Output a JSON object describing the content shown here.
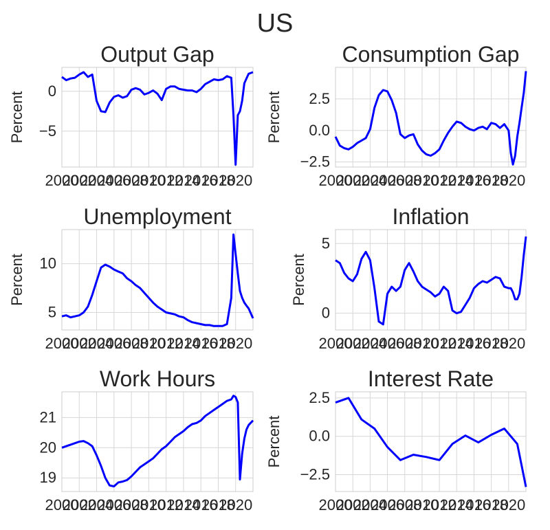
{
  "title": "US",
  "chart_data": [
    {
      "type": "line",
      "title": "Output Gap",
      "ylabel": "Percent",
      "xlim": [
        2000,
        2022
      ],
      "ylim": [
        -9.5,
        3
      ],
      "xticks": [
        2000,
        2002,
        2004,
        2006,
        2008,
        2010,
        2012,
        2014,
        2016,
        2018,
        2020
      ],
      "xtick_labels": [
        "2000",
        "2002",
        "2004",
        "2006",
        "2008",
        "2010",
        "2012",
        "2014",
        "2016",
        "2018",
        "2020"
      ],
      "yticks": [
        -5,
        0
      ],
      "ytick_labels": [
        "−5",
        "0"
      ],
      "series": [
        {
          "color": "#0000ff",
          "x": [
            2000,
            2000.5,
            2001,
            2001.5,
            2002,
            2002.5,
            2003,
            2003.5,
            2004,
            2004.5,
            2005,
            2005.5,
            2006,
            2006.5,
            2007,
            2007.5,
            2008,
            2008.5,
            2009,
            2009.5,
            2010,
            2010.5,
            2011,
            2011.5,
            2012,
            2012.5,
            2013,
            2013.5,
            2014,
            2014.5,
            2015,
            2015.5,
            2016,
            2016.5,
            2017,
            2017.5,
            2018,
            2018.5,
            2019,
            2019.5,
            2019.75,
            2020,
            2020.25,
            2020.5,
            2020.75,
            2021,
            2021.25,
            2021.5,
            2022
          ],
          "y": [
            1.8,
            1.4,
            1.6,
            1.7,
            2.1,
            2.4,
            1.8,
            2.1,
            -1.2,
            -2.5,
            -2.6,
            -1.4,
            -0.7,
            -0.5,
            -0.8,
            -0.6,
            0.2,
            0.4,
            0.2,
            -0.4,
            -0.2,
            0.1,
            -0.3,
            -1.1,
            0.3,
            0.6,
            0.6,
            0.3,
            0.2,
            0.1,
            0.1,
            -0.1,
            0.3,
            0.9,
            1.2,
            1.5,
            1.4,
            1.5,
            1.9,
            1.7,
            -3.0,
            -9.2,
            -3.0,
            -2.5,
            -1.2,
            1.0,
            1.6,
            2.2,
            2.4
          ]
        }
      ]
    },
    {
      "type": "line",
      "title": "Consumption Gap",
      "ylabel": "Percent",
      "xlim": [
        2000,
        2022
      ],
      "ylim": [
        -2.9,
        5
      ],
      "xticks": [
        2000,
        2002,
        2004,
        2006,
        2008,
        2010,
        2012,
        2014,
        2016,
        2018,
        2020
      ],
      "xtick_labels": [
        "2000",
        "2002",
        "2004",
        "2006",
        "2008",
        "2010",
        "2012",
        "2014",
        "2016",
        "2018",
        "2020"
      ],
      "yticks": [
        -2.5,
        0,
        2.5
      ],
      "ytick_labels": [
        "−2.5",
        "0.0",
        "2.5"
      ],
      "series": [
        {
          "color": "#0000ff",
          "x": [
            2000,
            2000.5,
            2001,
            2001.5,
            2002,
            2002.5,
            2003,
            2003.5,
            2004,
            2004.5,
            2005,
            2005.5,
            2006,
            2006.5,
            2007,
            2007.5,
            2008,
            2008.5,
            2009,
            2009.5,
            2010,
            2010.5,
            2011,
            2011.5,
            2012,
            2012.5,
            2013,
            2013.5,
            2014,
            2014.5,
            2015,
            2015.5,
            2016,
            2016.5,
            2017,
            2017.5,
            2018,
            2018.5,
            2019,
            2019.5,
            2020,
            2020.25,
            2020.5,
            2020.75,
            2021,
            2021.25,
            2021.5,
            2021.75,
            2022
          ],
          "y": [
            -0.5,
            -1.2,
            -1.4,
            -1.5,
            -1.3,
            -1.0,
            -0.8,
            -0.6,
            0.1,
            1.8,
            2.8,
            3.2,
            3.1,
            2.4,
            1.4,
            -0.3,
            -0.6,
            -0.4,
            -0.3,
            -1.1,
            -1.6,
            -1.9,
            -2.0,
            -1.8,
            -1.5,
            -0.8,
            -0.2,
            0.3,
            0.7,
            0.6,
            0.3,
            0.1,
            0.0,
            0.2,
            0.3,
            0.1,
            0.6,
            0.5,
            0.2,
            0.5,
            0.0,
            -1.8,
            -2.7,
            -2.0,
            -0.5,
            0.6,
            1.8,
            3.0,
            4.7
          ]
        }
      ]
    },
    {
      "type": "line",
      "title": "Unemployment",
      "ylabel": "Percent",
      "xlim": [
        2000,
        2022
      ],
      "ylim": [
        3.2,
        13.5
      ],
      "xticks": [
        2000,
        2002,
        2004,
        2006,
        2008,
        2010,
        2012,
        2014,
        2016,
        2018,
        2020
      ],
      "xtick_labels": [
        "2000",
        "2002",
        "2004",
        "2006",
        "2008",
        "2010",
        "2012",
        "2014",
        "2016",
        "2018",
        "2020"
      ],
      "yticks": [
        5,
        10
      ],
      "ytick_labels": [
        "5",
        "10"
      ],
      "series": [
        {
          "color": "#0000ff",
          "x": [
            2000,
            2000.5,
            2001,
            2001.5,
            2002,
            2002.5,
            2003,
            2003.5,
            2004,
            2004.5,
            2005,
            2005.5,
            2006,
            2006.5,
            2007,
            2007.5,
            2008,
            2008.5,
            2009,
            2009.5,
            2010,
            2010.5,
            2011,
            2011.5,
            2012,
            2012.5,
            2013,
            2013.5,
            2014,
            2014.5,
            2015,
            2015.5,
            2016,
            2016.5,
            2017,
            2017.5,
            2018,
            2018.5,
            2019,
            2019.5,
            2019.75,
            2020,
            2020.25,
            2020.5,
            2020.75,
            2021,
            2021.25,
            2021.5,
            2022
          ],
          "y": [
            4.6,
            4.7,
            4.5,
            4.6,
            4.7,
            5.0,
            5.6,
            6.8,
            8.2,
            9.6,
            9.9,
            9.7,
            9.4,
            9.2,
            9.0,
            8.5,
            8.2,
            7.8,
            7.5,
            7.0,
            6.5,
            6.0,
            5.6,
            5.3,
            5.0,
            4.9,
            4.8,
            4.6,
            4.5,
            4.2,
            4.0,
            3.9,
            3.8,
            3.7,
            3.7,
            3.6,
            3.6,
            3.6,
            3.8,
            6.5,
            13.0,
            11.0,
            9.0,
            7.2,
            6.5,
            6.0,
            5.7,
            5.4,
            4.4
          ]
        }
      ]
    },
    {
      "type": "line",
      "title": "Inflation",
      "ylabel": "Percent",
      "xlim": [
        2000,
        2022
      ],
      "ylim": [
        -1.2,
        6
      ],
      "xticks": [
        2000,
        2002,
        2004,
        2006,
        2008,
        2010,
        2012,
        2014,
        2016,
        2018,
        2020
      ],
      "xtick_labels": [
        "2000",
        "2002",
        "2004",
        "2006",
        "2008",
        "2010",
        "2012",
        "2014",
        "2016",
        "2018",
        "2020"
      ],
      "yticks": [
        0,
        5
      ],
      "ytick_labels": [
        "0",
        "5"
      ],
      "series": [
        {
          "color": "#0000ff",
          "x": [
            2000,
            2000.5,
            2001,
            2001.5,
            2002,
            2002.5,
            2003,
            2003.5,
            2004,
            2004.5,
            2005,
            2005.5,
            2006,
            2006.5,
            2007,
            2007.5,
            2008,
            2008.5,
            2009,
            2009.5,
            2010,
            2010.5,
            2011,
            2011.5,
            2012,
            2012.5,
            2013,
            2013.5,
            2014,
            2014.5,
            2015,
            2015.5,
            2016,
            2016.5,
            2017,
            2017.5,
            2018,
            2018.5,
            2019,
            2019.5,
            2020,
            2020.25,
            2020.5,
            2020.75,
            2021,
            2021.25,
            2021.5,
            2021.75,
            2022
          ],
          "y": [
            3.8,
            3.6,
            2.9,
            2.5,
            2.3,
            2.8,
            3.9,
            4.4,
            3.8,
            1.8,
            -0.6,
            -0.8,
            1.4,
            1.9,
            1.6,
            1.9,
            3.1,
            3.6,
            3.0,
            2.3,
            1.9,
            1.7,
            1.5,
            1.2,
            1.4,
            1.9,
            1.6,
            0.2,
            0.0,
            0.1,
            0.6,
            1.1,
            1.8,
            2.1,
            2.3,
            2.2,
            2.4,
            2.6,
            2.5,
            1.9,
            1.8,
            1.8,
            1.5,
            1.0,
            1.0,
            1.4,
            2.6,
            4.2,
            5.5
          ]
        }
      ]
    },
    {
      "type": "line",
      "title": "Work Hours",
      "ylabel": "",
      "xlim": [
        2000,
        2022
      ],
      "ylim": [
        18.55,
        21.85
      ],
      "xticks": [
        2000,
        2002,
        2004,
        2006,
        2008,
        2010,
        2012,
        2014,
        2016,
        2018,
        2020
      ],
      "xtick_labels": [
        "2000",
        "2002",
        "2004",
        "2006",
        "2008",
        "2010",
        "2012",
        "2014",
        "2016",
        "2018",
        "2020"
      ],
      "yticks": [
        19,
        20,
        21
      ],
      "ytick_labels": [
        "19",
        "20",
        "21"
      ],
      "series": [
        {
          "color": "#0000ff",
          "x": [
            2000,
            2000.5,
            2001,
            2001.5,
            2002,
            2002.5,
            2003,
            2003.5,
            2004,
            2004.5,
            2005,
            2005.5,
            2006,
            2006.5,
            2007,
            2007.5,
            2008,
            2008.5,
            2009,
            2009.5,
            2010,
            2010.5,
            2011,
            2011.5,
            2012,
            2012.5,
            2013,
            2013.5,
            2014,
            2014.5,
            2015,
            2015.5,
            2016,
            2016.5,
            2017,
            2017.5,
            2018,
            2018.5,
            2019,
            2019.5,
            2019.75,
            2020,
            2020.25,
            2020.5,
            2020.75,
            2021,
            2021.25,
            2021.5,
            2022
          ],
          "y": [
            20.0,
            20.05,
            20.1,
            20.15,
            20.2,
            20.22,
            20.15,
            20.05,
            19.75,
            19.4,
            19.0,
            18.75,
            18.72,
            18.85,
            18.88,
            18.93,
            19.05,
            19.2,
            19.35,
            19.45,
            19.55,
            19.65,
            19.8,
            19.95,
            20.05,
            20.2,
            20.35,
            20.45,
            20.55,
            20.68,
            20.78,
            20.82,
            20.9,
            21.05,
            21.15,
            21.25,
            21.35,
            21.45,
            21.55,
            21.6,
            21.72,
            21.68,
            21.5,
            18.95,
            19.8,
            20.3,
            20.6,
            20.75,
            20.9
          ]
        }
      ]
    },
    {
      "type": "line",
      "title": "Interest Rate",
      "ylabel": "Percent",
      "xlim": [
        2000,
        2022
      ],
      "ylim": [
        -3.6,
        2.9
      ],
      "xticks": [
        2000,
        2002,
        2004,
        2006,
        2008,
        2010,
        2012,
        2014,
        2016,
        2018,
        2020
      ],
      "xtick_labels": [
        "2000",
        "2002",
        "2004",
        "2006",
        "2008",
        "2010",
        "2012",
        "2014",
        "2016",
        "2018",
        "2020"
      ],
      "yticks": [
        -2.5,
        0,
        2.5
      ],
      "ytick_labels": [
        "−2.5",
        "0.0",
        "2.5"
      ],
      "series": [
        {
          "color": "#0000ff",
          "x": [
            2000,
            2001.5,
            2003,
            2004.5,
            2006,
            2007.5,
            2009,
            2010.5,
            2012,
            2013.5,
            2015,
            2016.5,
            2018,
            2019.5,
            2021,
            2022
          ],
          "y": [
            2.2,
            2.5,
            1.1,
            0.5,
            -0.7,
            -1.55,
            -1.2,
            -1.35,
            -1.55,
            -0.5,
            0.05,
            -0.4,
            0.1,
            0.5,
            -0.5,
            -3.3
          ]
        }
      ]
    }
  ]
}
